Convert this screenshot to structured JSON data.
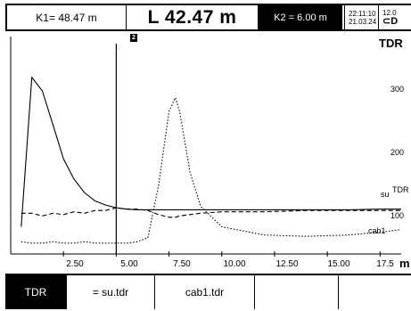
{
  "header": {
    "k1": "K1= 48.47 m",
    "length": "L 42.47 m",
    "k2": "K2 = 6.00 m",
    "time": "22:11:10",
    "date": "21.03.24",
    "battery_top": "12.0",
    "battery_symbol": "⊂D"
  },
  "plot": {
    "title": "TDR",
    "unit": "m",
    "cursor_label": "2",
    "y_labels": [
      "300",
      "200",
      "100"
    ],
    "trace_labels": {
      "su": "su",
      "tdr": "TDR",
      "cab1": "cab1"
    },
    "x_ticks": [
      "2.50",
      "5.00",
      "7.50",
      "10.00",
      "12.50",
      "15.00",
      "17.5"
    ]
  },
  "chart_data": {
    "type": "line",
    "x": [
      0.5,
      1.0,
      1.5,
      2.0,
      2.5,
      3.0,
      3.5,
      4.0,
      4.5,
      5.0,
      5.5,
      6.0,
      6.5,
      7.0,
      7.5,
      7.8,
      8.0,
      8.5,
      9.0,
      10.0,
      12.0,
      14.0,
      16.0,
      17.5,
      18.5
    ],
    "series": [
      {
        "name": "TDR",
        "style": "solid",
        "values": [
          80,
          300,
          280,
          230,
          180,
          150,
          130,
          118,
          112,
          108,
          106,
          105,
          105,
          105,
          105,
          105,
          105,
          105,
          105,
          105,
          105,
          105,
          105,
          106,
          106
        ]
      },
      {
        "name": "su",
        "style": "dashed",
        "values": [
          100,
          100,
          96,
          100,
          98,
          102,
          100,
          104,
          104,
          108,
          106,
          106,
          104,
          98,
          94,
          94,
          96,
          98,
          100,
          102,
          102,
          104,
          104,
          104,
          104
        ]
      },
      {
        "name": "cab1",
        "style": "dotted",
        "values": [
          58,
          56,
          56,
          58,
          56,
          56,
          58,
          56,
          56,
          56,
          56,
          58,
          64,
          140,
          250,
          270,
          250,
          160,
          110,
          80,
          68,
          66,
          68,
          72,
          76
        ]
      }
    ],
    "xlabel": "m",
    "ylabel": "TDR",
    "xlim": [
      0,
      18.5
    ],
    "ylim": [
      40,
      360
    ],
    "cursor_x": 5.0
  },
  "tabs": [
    {
      "label": "TDR",
      "active": true
    },
    {
      "label": "= su.tdr",
      "active": false
    },
    {
      "label": "cab1.tdr",
      "active": false
    },
    {
      "label": "",
      "active": false
    },
    {
      "label": "",
      "active": false
    }
  ]
}
